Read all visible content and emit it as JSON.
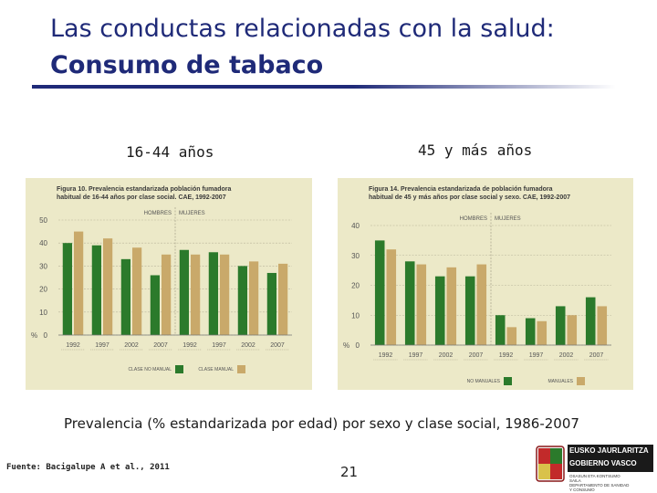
{
  "slide": {
    "title_line1": "Las conductas relacionadas con la salud:",
    "title_line2": "Consumo de tabaco",
    "label_left": "16-44 años",
    "label_right": "45 y más años",
    "caption": "Prevalencia (% estandarizada por edad) por sexo y clase social, 1986-2007",
    "source": "Fuente: Bacigalupe A et al., 2011",
    "page_number": "21"
  },
  "logo": {
    "line1": "EUSKO JAURLARITZA",
    "line2": "GOBIERNO VASCO",
    "line3": "OSASUN ETA KONTSUMO",
    "line4": "SAILA",
    "line5": "DEPARTAMENTO DE SANIDAD",
    "line6": "Y CONSUMO"
  },
  "colors": {
    "title": "#1f2a78",
    "panel_bg": "#ece9c8",
    "green": "#2b7a2b",
    "tan": "#c9a96a"
  },
  "chart_data": [
    {
      "type": "bar",
      "title": "Figura 10. Prevalencia estandarizada población fumadora habitual de 16-44 años por clase social. CAE, 1992-2007",
      "groups": [
        "HOMBRES",
        "MUJERES"
      ],
      "categories": [
        "1992",
        "1997",
        "2002",
        "2007",
        "1992",
        "1997",
        "2002",
        "2007"
      ],
      "series": [
        {
          "name": "CLASE NO MANUAL",
          "values": [
            40,
            39,
            33,
            26,
            37,
            36,
            30,
            27
          ]
        },
        {
          "name": "CLASE MANUAL",
          "values": [
            45,
            42,
            38,
            35,
            35,
            35,
            32,
            31
          ]
        }
      ],
      "ylabel": "%",
      "yticks": [
        0,
        10,
        20,
        30,
        40,
        50
      ],
      "ylim": [
        0,
        50
      ],
      "grid": true,
      "legend": "bottom-right"
    },
    {
      "type": "bar",
      "title": "Figura 14. Prevalencia estandarizada de población fumadora habitual de 45 y más años por clase social y sexo. CAE, 1992-2007",
      "groups": [
        "HOMBRES",
        "MUJERES"
      ],
      "categories": [
        "1992",
        "1997",
        "2002",
        "2007",
        "1992",
        "1997",
        "2002",
        "2007"
      ],
      "series": [
        {
          "name": "NO MANUALES",
          "values": [
            35,
            28,
            23,
            23,
            10,
            9,
            13,
            16
          ]
        },
        {
          "name": "MANUALES",
          "values": [
            32,
            27,
            26,
            27,
            6,
            8,
            10,
            13
          ]
        }
      ],
      "ylabel": "%",
      "yticks": [
        0,
        10,
        20,
        30,
        40
      ],
      "ylim": [
        0,
        40
      ],
      "grid": true,
      "legend": "bottom-right"
    }
  ]
}
